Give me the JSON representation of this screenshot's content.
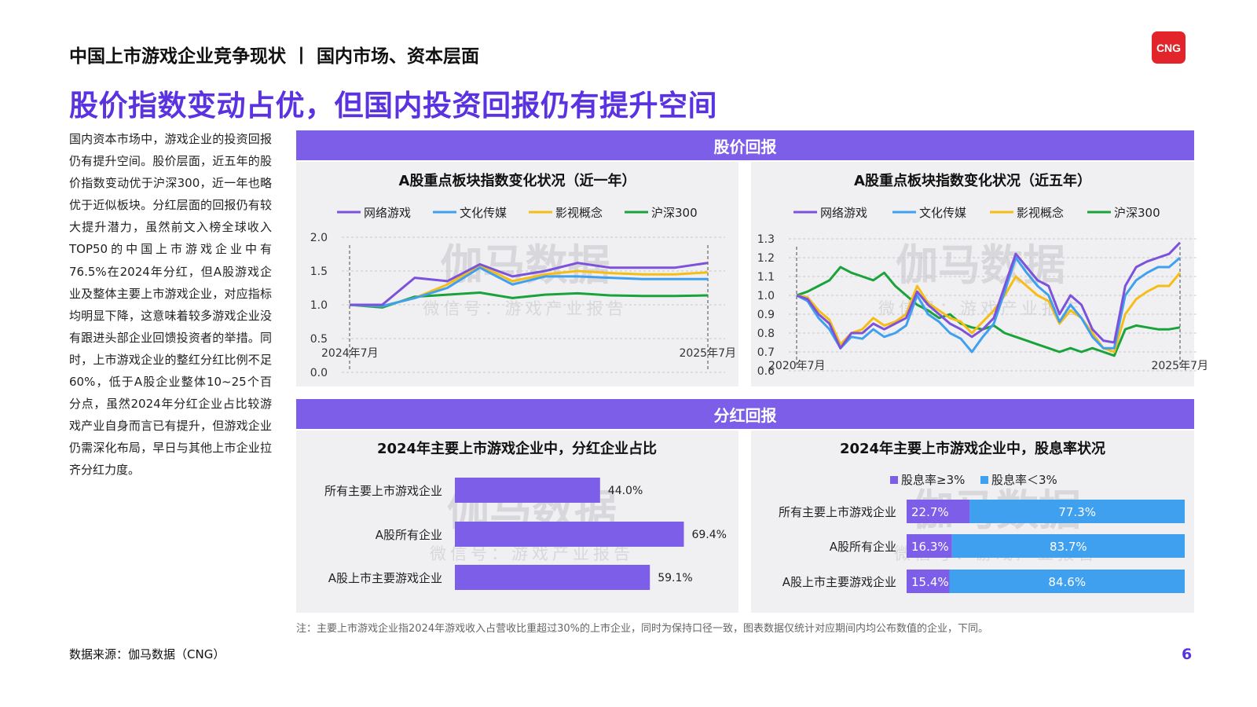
{
  "header": {
    "title": "中国上市游戏企业竞争现状 丨 国内市场、资本层面"
  },
  "logo": {
    "text": "CNG",
    "color": "#e1252b"
  },
  "main_title": "股价指数变动占优，但国内投资回报仍有提升空间",
  "body_text": "国内资本市场中，游戏企业的投资回报仍有提升空间。股价层面，近五年的股价指数变动优于沪深300，近一年也略优于近似板块。分红层面的回报仍有较大提升潜力，虽然前文入榜全球收入TOP50的中国上市游戏企业中有76.5%在2024年分红，但A股游戏企业及整体主要上市游戏企业，对应指标均明显下降，这意味着较多游戏企业没有跟进头部企业回馈投资者的举措。同时，上市游戏企业的整红分红比例不足60%，低于A股企业整体10~25个百分点，虽然2024年分红企业占比较游戏产业自身而言已有提升，但游戏企业仍需深化布局，早日与其他上市企业拉齐分红力度。",
  "sections": {
    "stock": "股价回报",
    "dividend": "分红回报"
  },
  "watermark": {
    "main": "伽马数据",
    "sub": "微信号：游戏产业报告"
  },
  "colors": {
    "accent": "#5a32e0",
    "bar": "#7c5ee8",
    "game": "#7b52d9",
    "media": "#3fa0f0",
    "film": "#f6bd16",
    "hs300": "#1aa33a",
    "light_blue": "#3fa0f0"
  },
  "chart_data": [
    {
      "type": "line",
      "title": "A股重点板块指数变化状况（近一年）",
      "legend": [
        "网络游戏",
        "文化传媒",
        "影视概念",
        "沪深300"
      ],
      "legend_position": "top",
      "x_labels": [
        "2024年7月",
        "2025年7月"
      ],
      "y_ticks": [
        "0.0",
        "0.5",
        "1.0",
        "1.5",
        "2.0"
      ],
      "ylim": [
        0,
        2.0
      ],
      "grid": true,
      "series": [
        {
          "name": "网络游戏",
          "values": [
            1.0,
            1.0,
            1.4,
            1.35,
            1.6,
            1.42,
            1.5,
            1.62,
            1.55,
            1.55,
            1.55,
            1.62
          ]
        },
        {
          "name": "文化传媒",
          "values": [
            1.0,
            0.98,
            1.1,
            1.25,
            1.55,
            1.3,
            1.42,
            1.42,
            1.4,
            1.38,
            1.38,
            1.38
          ]
        },
        {
          "name": "影视概念",
          "values": [
            1.0,
            0.98,
            1.1,
            1.3,
            1.58,
            1.35,
            1.45,
            1.5,
            1.47,
            1.45,
            1.45,
            1.48
          ]
        },
        {
          "name": "沪深300",
          "values": [
            1.0,
            0.96,
            1.12,
            1.15,
            1.18,
            1.1,
            1.15,
            1.17,
            1.14,
            1.13,
            1.13,
            1.14
          ]
        }
      ]
    },
    {
      "type": "line",
      "title": "A股重点板块指数变化状况（近五年）",
      "legend": [
        "网络游戏",
        "文化传媒",
        "影视概念",
        "沪深300"
      ],
      "legend_position": "top",
      "x_labels": [
        "2020年7月",
        "2025年7月"
      ],
      "y_ticks": [
        "0.6",
        "0.7",
        "0.8",
        "0.9",
        "1.0",
        "1.1",
        "1.2",
        "1.3"
      ],
      "ylim": [
        0.6,
        1.3
      ],
      "grid": true,
      "series": [
        {
          "name": "网络游戏",
          "values": [
            1.0,
            0.98,
            0.9,
            0.85,
            0.72,
            0.8,
            0.8,
            0.85,
            0.82,
            0.85,
            0.88,
            1.02,
            0.95,
            0.9,
            0.85,
            0.82,
            0.78,
            0.82,
            0.88,
            1.05,
            1.22,
            1.15,
            1.08,
            1.05,
            0.9,
            1.0,
            0.95,
            0.82,
            0.76,
            0.75,
            1.05,
            1.15,
            1.18,
            1.2,
            1.22,
            1.28
          ]
        },
        {
          "name": "文化传媒",
          "values": [
            1.0,
            0.97,
            0.88,
            0.82,
            0.72,
            0.78,
            0.77,
            0.82,
            0.78,
            0.8,
            0.84,
            1.0,
            0.9,
            0.86,
            0.8,
            0.77,
            0.7,
            0.78,
            0.85,
            1.02,
            1.2,
            1.12,
            1.05,
            1.0,
            0.86,
            0.95,
            0.88,
            0.78,
            0.72,
            0.72,
            1.0,
            1.08,
            1.12,
            1.15,
            1.15,
            1.2
          ]
        },
        {
          "name": "影视概念",
          "values": [
            1.0,
            0.99,
            0.92,
            0.87,
            0.74,
            0.8,
            0.82,
            0.88,
            0.84,
            0.86,
            0.9,
            1.05,
            0.96,
            0.92,
            0.88,
            0.86,
            0.8,
            0.86,
            0.92,
            1.0,
            1.1,
            1.05,
            1.0,
            0.97,
            0.85,
            0.92,
            0.88,
            0.8,
            0.72,
            0.7,
            0.9,
            0.98,
            1.02,
            1.05,
            1.05,
            1.12
          ]
        },
        {
          "name": "沪深300",
          "values": [
            1.0,
            1.02,
            1.05,
            1.08,
            1.15,
            1.12,
            1.1,
            1.08,
            1.12,
            1.05,
            1.0,
            0.95,
            0.92,
            0.88,
            0.9,
            0.85,
            0.83,
            0.82,
            0.84,
            0.8,
            0.78,
            0.76,
            0.74,
            0.72,
            0.7,
            0.72,
            0.7,
            0.72,
            0.7,
            0.68,
            0.82,
            0.84,
            0.83,
            0.82,
            0.82,
            0.83
          ]
        }
      ]
    },
    {
      "type": "bar",
      "orientation": "horizontal",
      "title": "2024年主要上市游戏企业中，分红企业占比",
      "categories": [
        "所有主要上市游戏企业",
        "A股所有企业",
        "A股上市主要游戏企业"
      ],
      "values": [
        44.0,
        69.4,
        59.1
      ],
      "value_labels": [
        "44.0%",
        "69.4%",
        "59.1%"
      ],
      "xlim": [
        0,
        100
      ]
    },
    {
      "type": "bar",
      "orientation": "horizontal",
      "stacked": true,
      "title": "2024年主要上市游戏企业中，股息率状况",
      "legend": [
        "股息率≥3%",
        "股息率＜3%"
      ],
      "legend_position": "top",
      "categories": [
        "所有主要上市游戏企业",
        "A股所有企业",
        "A股上市主要游戏企业"
      ],
      "series": [
        {
          "name": "股息率≥3%",
          "values": [
            22.7,
            16.3,
            15.4
          ],
          "labels": [
            "22.7%",
            "16.3%",
            "15.4%"
          ]
        },
        {
          "name": "股息率＜3%",
          "values": [
            77.3,
            83.7,
            84.6
          ],
          "labels": [
            "77.3%",
            "83.7%",
            "84.6%"
          ]
        }
      ]
    }
  ],
  "footnote": "注：主要上市游戏企业指2024年游戏收入占营收比重超过30%的上市企业，同时为保持口径一致，图表数据仅统计对应期间内均公布数值的企业，下同。",
  "source": "数据来源：伽马数据（CNG）",
  "page_number": "6"
}
